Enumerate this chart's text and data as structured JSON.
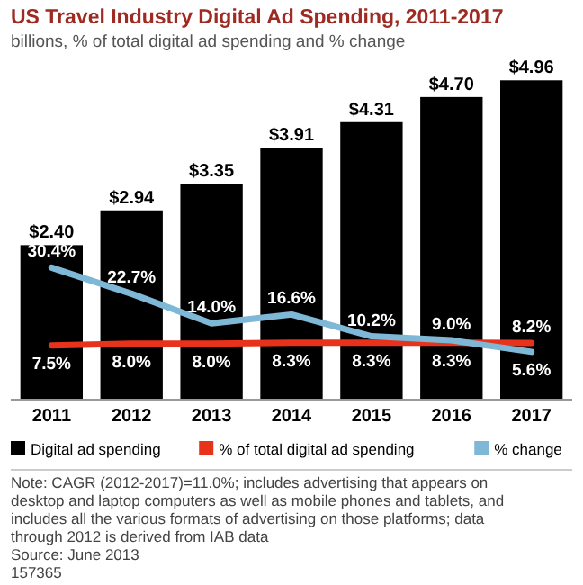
{
  "chart_data": {
    "type": "bar",
    "title": "US Travel Industry Digital Ad Spending, 2011-2017",
    "subtitle": "billions, % of total digital ad spending and % change",
    "categories": [
      "2011",
      "2012",
      "2013",
      "2014",
      "2015",
      "2016",
      "2017"
    ],
    "series": [
      {
        "name": "Digital ad spending",
        "color": "#000000",
        "values": [
          2.4,
          2.94,
          3.35,
          3.91,
          4.31,
          4.7,
          4.96
        ],
        "value_labels": [
          "$2.40",
          "$2.94",
          "$3.35",
          "$3.91",
          "$4.31",
          "$4.70",
          "$4.96"
        ]
      },
      {
        "name": "% of total digital ad spending",
        "type": "line",
        "axis": "y2",
        "color": "#e8331c",
        "values": [
          7.5,
          8.0,
          8.0,
          8.3,
          8.3,
          8.3,
          8.2
        ],
        "value_labels": [
          "7.5%",
          "8.0%",
          "8.0%",
          "8.3%",
          "8.3%",
          "8.3%",
          "8.2%"
        ]
      },
      {
        "name": "% change",
        "type": "line",
        "axis": "y2",
        "color": "#7fb8d6",
        "values": [
          30.4,
          22.7,
          14.0,
          16.6,
          10.2,
          9.0,
          5.6
        ],
        "value_labels": [
          "30.4%",
          "22.7%",
          "14.0%",
          "16.6%",
          "10.2%",
          "9.0%",
          "5.6%"
        ]
      }
    ],
    "legend": "bottom",
    "annotations": [
      "Note: CAGR (2012-2017)=11.0%; includes advertising that appears on desktop and laptop computers as well as mobile phones and tablets, and includes all the various formats of advertising on those platforms; data through 2012 is derived from IAB data",
      "Source: June 2013",
      "157365"
    ]
  }
}
